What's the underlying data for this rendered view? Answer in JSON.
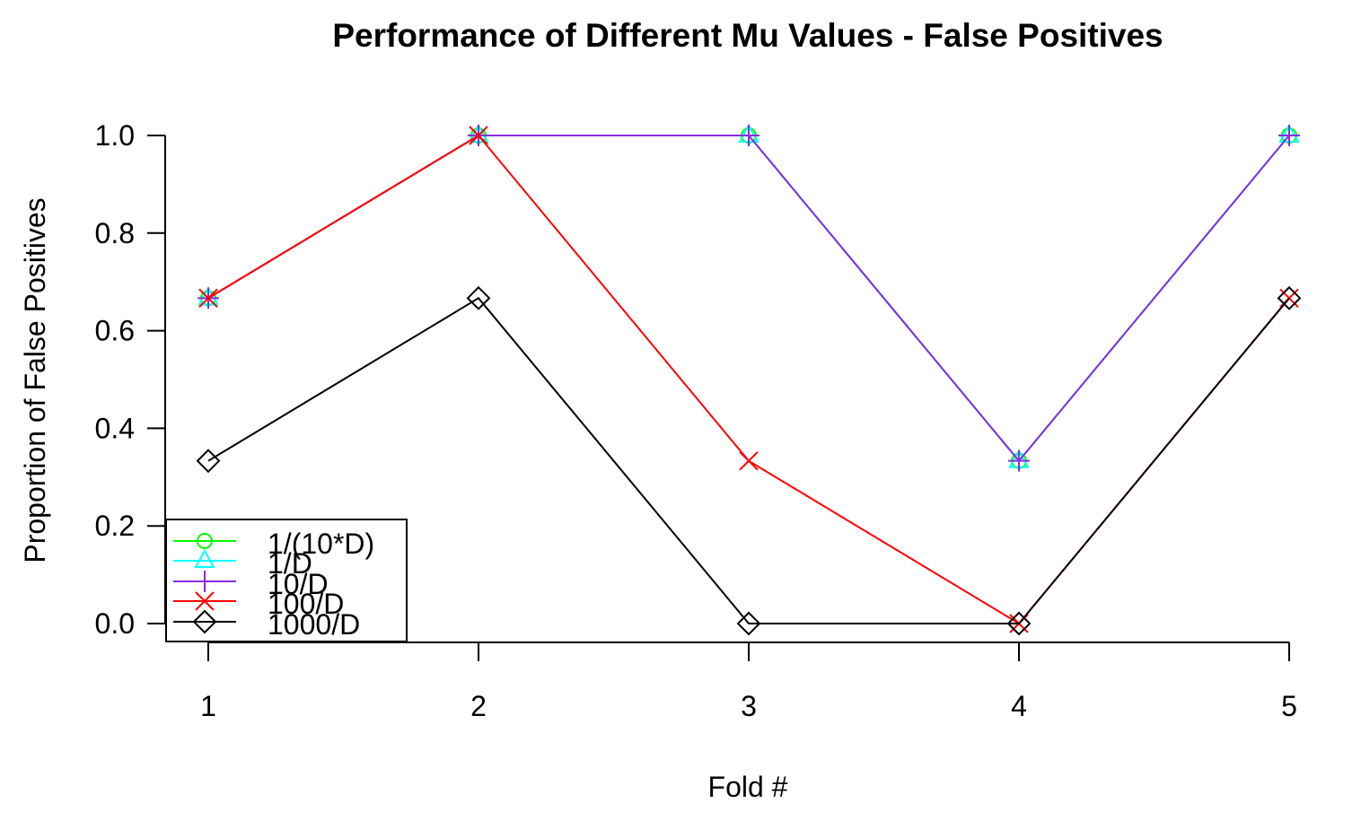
{
  "chart_data": {
    "type": "line",
    "title": "Performance of Different Mu Values - False Positives",
    "xlabel": "Fold #",
    "ylabel": "Proportion of False Positives",
    "x": [
      1,
      2,
      3,
      4,
      5
    ],
    "xlim": [
      1,
      5
    ],
    "ylim": [
      0,
      1
    ],
    "yticks": [
      "0.0",
      "0.2",
      "0.4",
      "0.6",
      "0.8",
      "1.0"
    ],
    "xticks": [
      "1",
      "2",
      "3",
      "4",
      "5"
    ],
    "grid": false,
    "legend_position": "bottom-left",
    "series": [
      {
        "name": "1/(10*D)",
        "color": "#00ff00",
        "marker": "circle",
        "values": [
          0.6667,
          1.0,
          1.0,
          0.3333,
          1.0
        ]
      },
      {
        "name": "1/D",
        "color": "#00ffff",
        "marker": "triangle",
        "values": [
          0.6667,
          1.0,
          1.0,
          0.3333,
          1.0
        ]
      },
      {
        "name": "10/D",
        "color": "#8a2be2",
        "marker": "plus",
        "values": [
          0.6667,
          1.0,
          1.0,
          0.3333,
          1.0
        ]
      },
      {
        "name": "100/D",
        "color": "#ff0000",
        "marker": "cross",
        "values": [
          0.6667,
          1.0,
          0.3333,
          0.0,
          0.6667
        ]
      },
      {
        "name": "1000/D",
        "color": "#000000",
        "marker": "diamond",
        "values": [
          0.3333,
          0.6667,
          0.0,
          0.0,
          0.6667
        ]
      }
    ]
  }
}
